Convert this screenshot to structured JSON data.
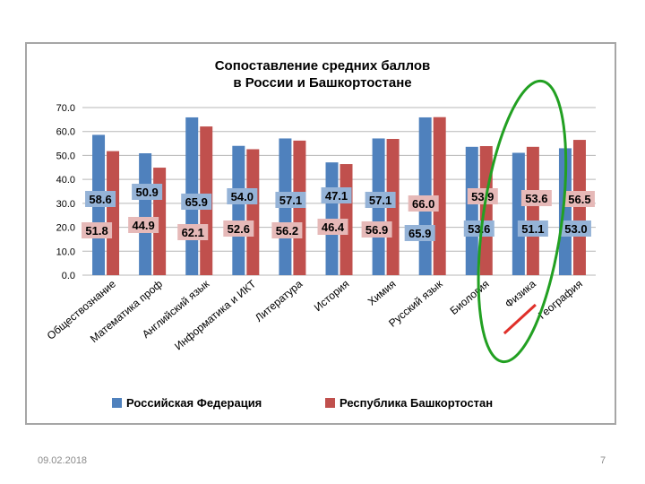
{
  "chart_data": {
    "type": "bar",
    "title": [
      "Сопоставление средних баллов",
      "в России и Башкортостане"
    ],
    "xlabel": "",
    "ylabel": "",
    "ylim": [
      0,
      70
    ],
    "y_ticks": [
      "0.0",
      "10.0",
      "20.0",
      "30.0",
      "40.0",
      "50.0",
      "60.0",
      "70.0"
    ],
    "grid": true,
    "legend_position": "bottom",
    "categories": [
      "Обществознание",
      "Математика проф",
      "Английский язык",
      "Информатика и ИКТ",
      "Литература",
      "История",
      "Химия",
      "Русский язык",
      "Биология",
      "Физика",
      "География"
    ],
    "series": [
      {
        "name": "Российская Федерация",
        "color": "#4f81bd",
        "values": [
          58.6,
          50.9,
          65.9,
          54.0,
          57.1,
          47.1,
          57.1,
          65.9,
          53.6,
          51.1,
          53.0
        ]
      },
      {
        "name": "Республика Башкортостан",
        "color": "#c0504d",
        "values": [
          51.8,
          44.9,
          62.1,
          52.6,
          56.2,
          46.4,
          56.9,
          66.0,
          53.9,
          53.6,
          56.5
        ]
      }
    ],
    "value_labels": {
      "upper": [
        "58.6",
        "50.9",
        "65.9",
        "54.0",
        "57.1",
        "47.1",
        "57.1",
        "66.0",
        "53.9",
        "53.6",
        "56.5"
      ],
      "lower": [
        "51.8",
        "44.9",
        "62.1",
        "52.6",
        "56.2",
        "46.4",
        "56.9",
        "65.9",
        "53.6",
        "51.1",
        "53.0"
      ],
      "upper_style": [
        "blue",
        "blue",
        "blue",
        "blue",
        "blue",
        "blue",
        "blue",
        "red",
        "red",
        "red",
        "red"
      ],
      "lower_style": [
        "red",
        "red",
        "red",
        "red",
        "red",
        "red",
        "red",
        "blue",
        "blue",
        "blue",
        "blue"
      ]
    },
    "annotations": {
      "ellipse_around": "Физика",
      "ellipse_color": "#22a022",
      "strike_color": "#e0302a"
    }
  },
  "footer": {
    "date": "09.02.2018",
    "page": "7"
  }
}
